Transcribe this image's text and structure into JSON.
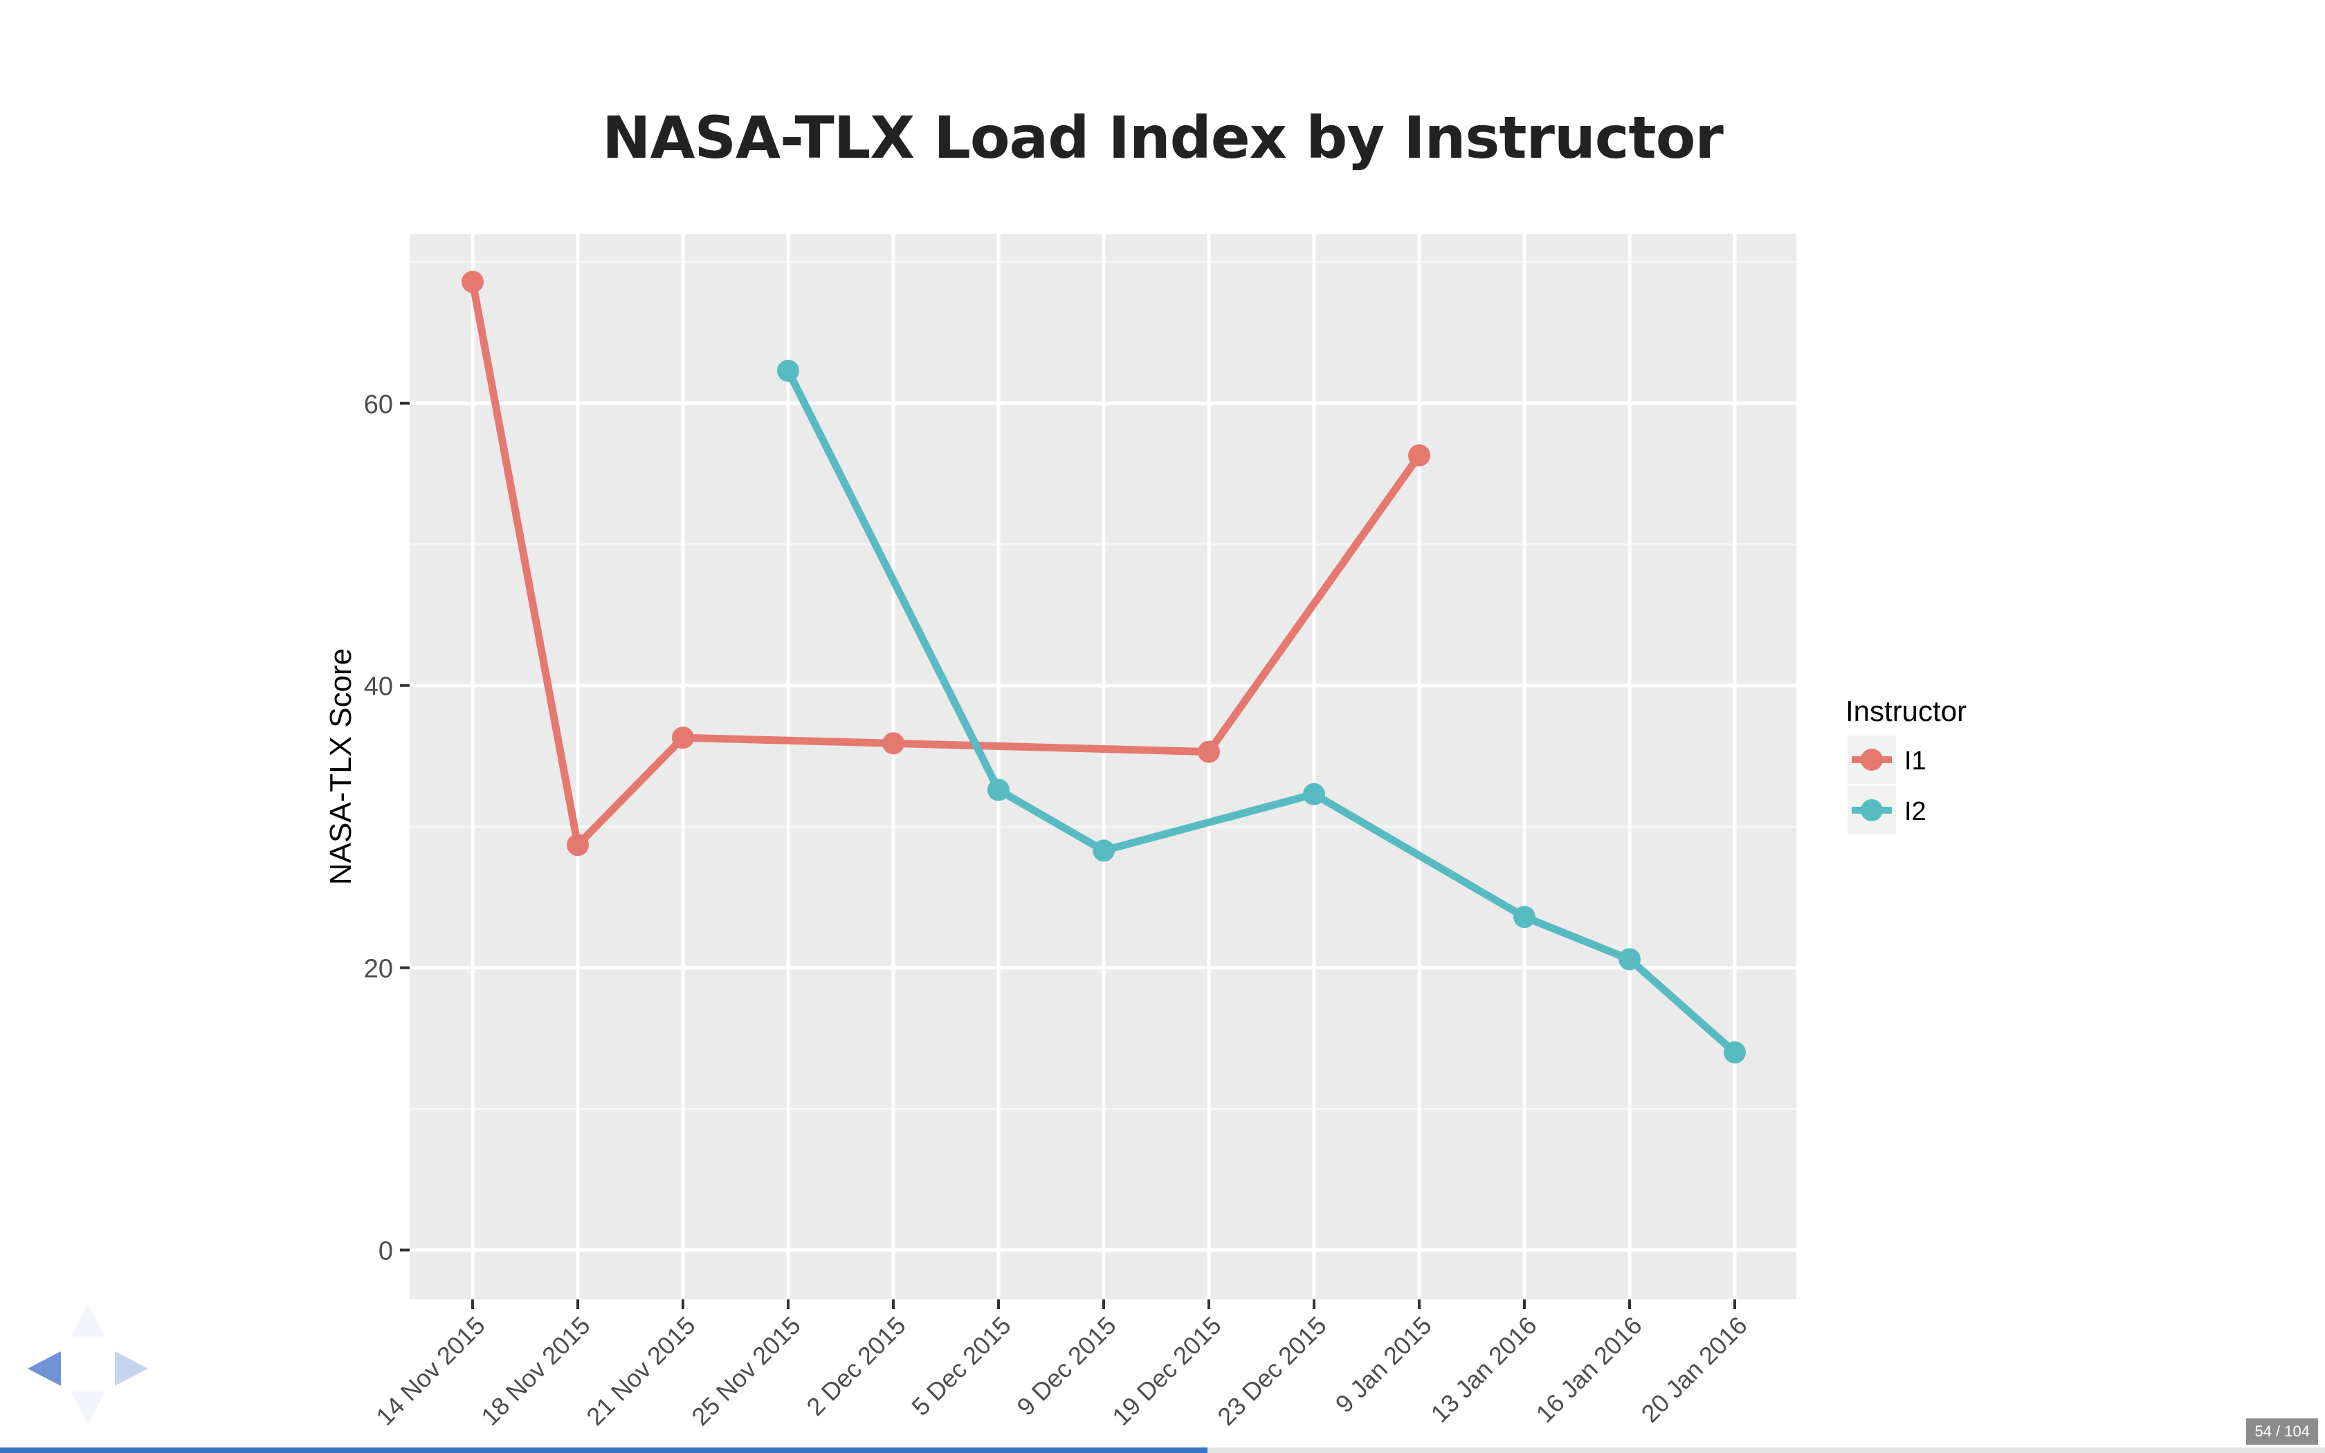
{
  "slide": {
    "title": "NASA-TLX Load Index by Instructor",
    "current": "54",
    "total": "104",
    "progress": 0.5192
  },
  "colors": {
    "series_I1": "#E5796F",
    "series_I2": "#59BBC2",
    "panel_bg": "#EBEBEB",
    "grid": "#FFFFFF",
    "nav_active": "#6F93D6",
    "progress": "#3B73C4"
  },
  "nav": {
    "left_icon": "arrow-left-icon",
    "right_icon": "arrow-right-icon",
    "up_icon": "arrow-up-icon",
    "down_icon": "arrow-down-icon"
  },
  "chart_data": {
    "type": "line",
    "title": "NASA-TLX Load Index by Instructor",
    "xlabel": "",
    "ylabel": "NASA-TLX Score",
    "categories": [
      "14 Nov 2015",
      "18 Nov 2015",
      "21 Nov 2015",
      "25 Nov 2015",
      "2 Dec 2015",
      "5 Dec 2015",
      "9 Dec 2015",
      "19 Dec 2015",
      "23 Dec 2015",
      "9 Jan 2015",
      "13 Jan 2016",
      "16 Jan 2016",
      "20 Jan 2016"
    ],
    "yticks": [
      0,
      20,
      40,
      60
    ],
    "ylim": [
      -3.5,
      72
    ],
    "grid": true,
    "legend": {
      "title": "Instructor",
      "position": "right"
    },
    "series": [
      {
        "name": "I1",
        "values": [
          68.6,
          28.7,
          36.3,
          null,
          35.9,
          null,
          null,
          35.3,
          null,
          56.3,
          null,
          null,
          null
        ]
      },
      {
        "name": "I2",
        "values": [
          null,
          null,
          null,
          62.3,
          null,
          32.6,
          28.3,
          null,
          32.3,
          null,
          23.6,
          20.6,
          14.0
        ]
      }
    ]
  }
}
